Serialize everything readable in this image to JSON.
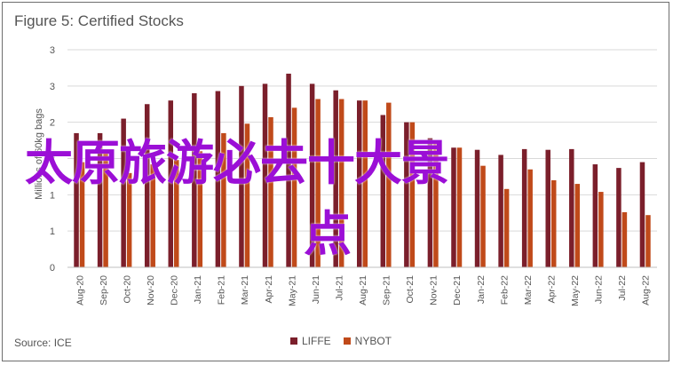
{
  "chart_data": {
    "type": "bar",
    "title": "Figure 5: Certified Stocks",
    "ylabel": "Millions of 60kg bags",
    "xlabel": "",
    "ylim": [
      0,
      3.0
    ],
    "y_ticks": [
      0,
      0.5,
      1.0,
      1.5,
      2.0,
      2.5,
      3.0
    ],
    "y_tick_labels": [
      "0",
      "1",
      "1",
      "2",
      "2",
      "3",
      "3"
    ],
    "categories": [
      "Aug-20",
      "Sep-20",
      "Oct-20",
      "Nov-20",
      "Dec-20",
      "Jan-21",
      "Feb-21",
      "Mar-21",
      "Apr-21",
      "May-21",
      "Jun-21",
      "Jul-21",
      "Aug-21",
      "Sep-21",
      "Oct-21",
      "Nov-21",
      "Dec-21",
      "Jan-22",
      "Feb-22",
      "Mar-22",
      "Apr-22",
      "May-22",
      "Jun-22",
      "Jul-22",
      "Aug-22"
    ],
    "series": [
      {
        "name": "LIFFE",
        "color": "#7b1f2b",
        "values": [
          1.85,
          1.85,
          2.05,
          2.25,
          2.3,
          2.4,
          2.43,
          2.5,
          2.53,
          2.67,
          2.53,
          2.44,
          2.3,
          2.1,
          2.0,
          1.78,
          1.65,
          1.62,
          1.55,
          1.63,
          1.62,
          1.63,
          1.42,
          1.37,
          1.45
        ]
      },
      {
        "name": "NYBOT",
        "color": "#c04a1a",
        "values": [
          1.45,
          1.6,
          1.3,
          1.42,
          1.48,
          1.6,
          1.85,
          1.98,
          2.07,
          2.2,
          2.32,
          2.32,
          2.3,
          2.27,
          2.0,
          1.72,
          1.65,
          1.4,
          1.08,
          1.35,
          1.2,
          1.15,
          1.04,
          0.76,
          0.72
        ]
      }
    ],
    "grid": true,
    "legend_position": "bottom"
  },
  "source": "Source: ICE",
  "overlay_text": [
    "太原旅游必去十大景",
    "点"
  ],
  "colors": {
    "grid": "#d9d9d9",
    "axis_text": "#555555",
    "overlay": "#9b0fd6"
  }
}
